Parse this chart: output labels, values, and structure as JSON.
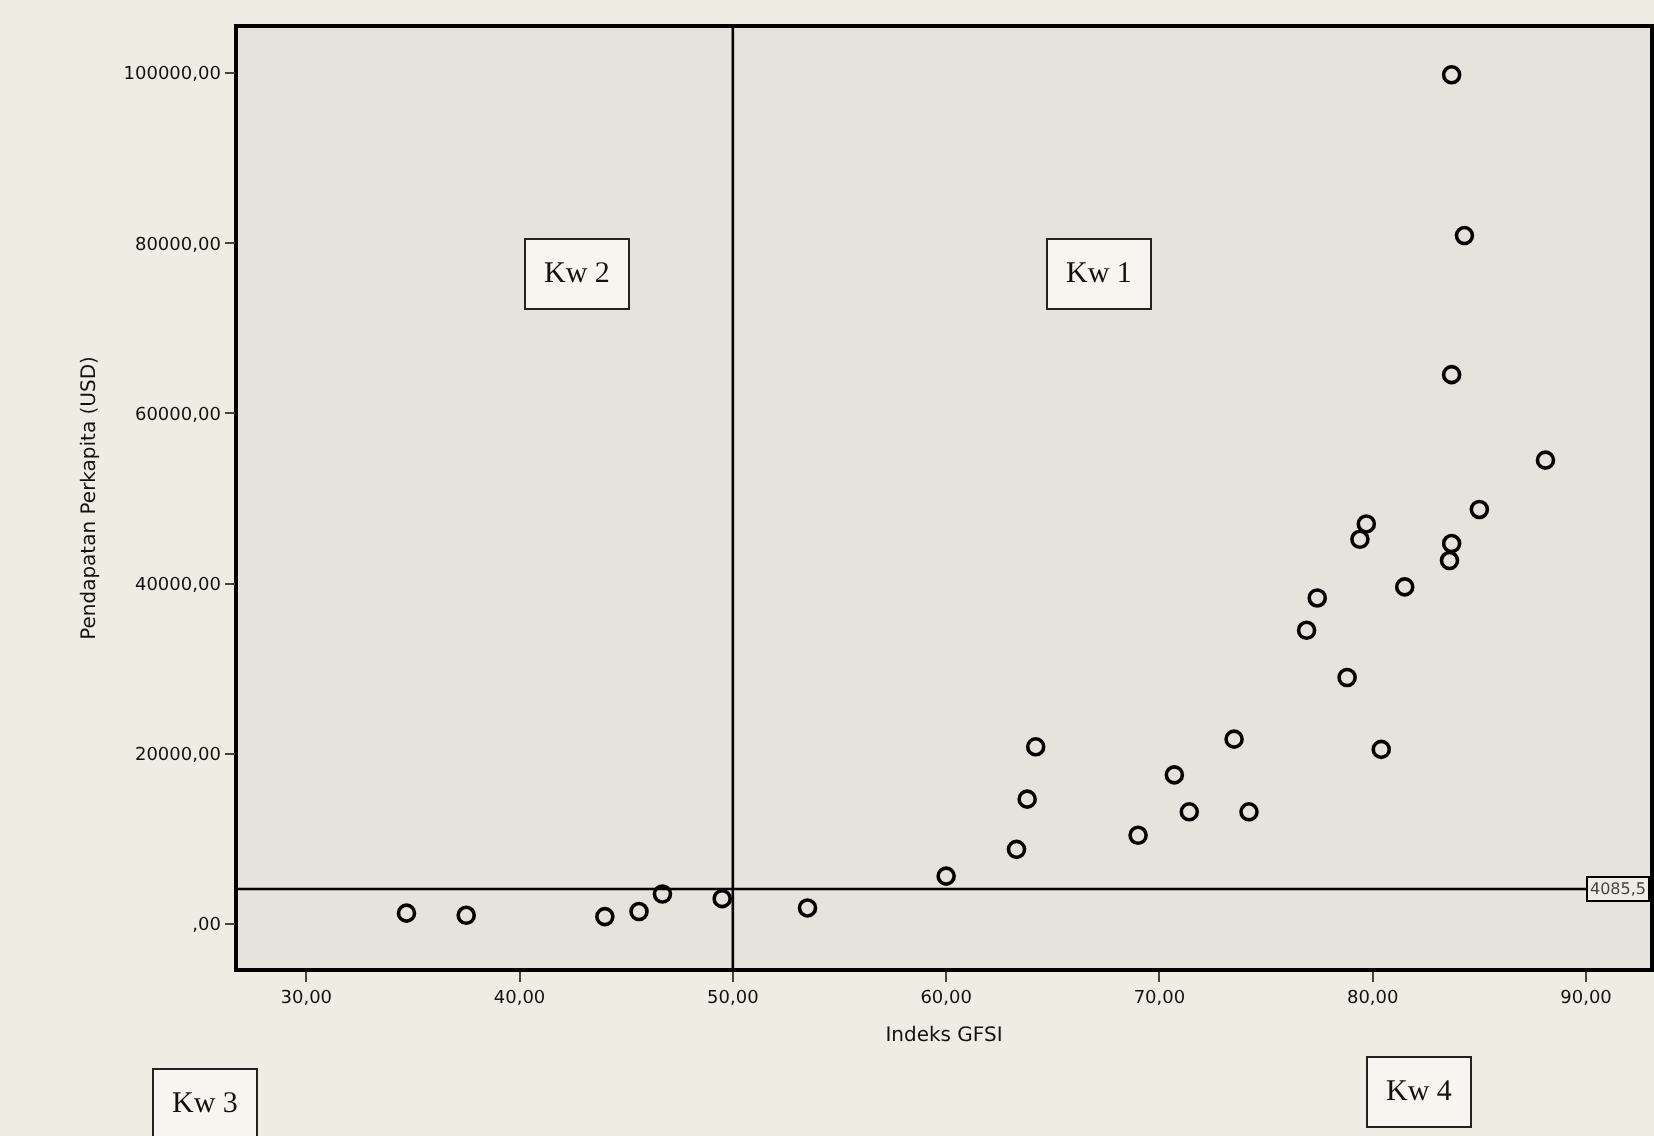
{
  "chart_data": {
    "type": "scatter",
    "xlabel": "Indeks GFSI",
    "ylabel": "Pendapatan Perkapita (USD)",
    "x": [
      34.7,
      37.5,
      44.0,
      45.6,
      46.7,
      49.5,
      53.5,
      60.0,
      63.3,
      63.8,
      64.2,
      69.0,
      70.7,
      71.4,
      73.5,
      74.2,
      76.9,
      77.4,
      78.8,
      79.4,
      79.7,
      80.4,
      81.5,
      83.6,
      83.7,
      83.7,
      83.7,
      84.3,
      85.0,
      88.1
    ],
    "series": [
      {
        "color": "#000000",
        "values": [
          1250,
          1000,
          840,
          1440,
          3500,
          2950,
          1860,
          5600,
          8750,
          14650,
          20800,
          10400,
          17500,
          13160,
          21700,
          13160,
          34500,
          38300,
          28950,
          45200,
          47000,
          20500,
          39600,
          42700,
          44700,
          64550,
          99800,
          80900,
          48700,
          54500
        ]
      }
    ],
    "xlim": [
      26.8,
      93
    ],
    "ylim": [
      -5200,
      105300
    ],
    "xticks": [
      {
        "value": 30,
        "label": "30,00"
      },
      {
        "value": 40,
        "label": "40,00"
      },
      {
        "value": 50,
        "label": "50,00"
      },
      {
        "value": 60,
        "label": "60,00"
      },
      {
        "value": 70,
        "label": "70,00"
      },
      {
        "value": 80,
        "label": "80,00"
      },
      {
        "value": 90,
        "label": "90,00"
      }
    ],
    "yticks": [
      {
        "value": 0,
        "label": ",00"
      },
      {
        "value": 20000,
        "label": "20000,00"
      },
      {
        "value": 40000,
        "label": "40000,00"
      },
      {
        "value": 60000,
        "label": "60000,00"
      },
      {
        "value": 80000,
        "label": "80000,00"
      },
      {
        "value": 100000,
        "label": "100000,00"
      }
    ],
    "ref_lines": [
      {
        "axis": "x",
        "value": 50
      },
      {
        "axis": "y",
        "value": 4085.5,
        "label": "4085,5"
      }
    ],
    "annotations": [
      "Kw 2",
      "Kw 1",
      "Kw 3",
      "Kw 4"
    ],
    "marker": "circle",
    "grid": false,
    "legend": false
  }
}
